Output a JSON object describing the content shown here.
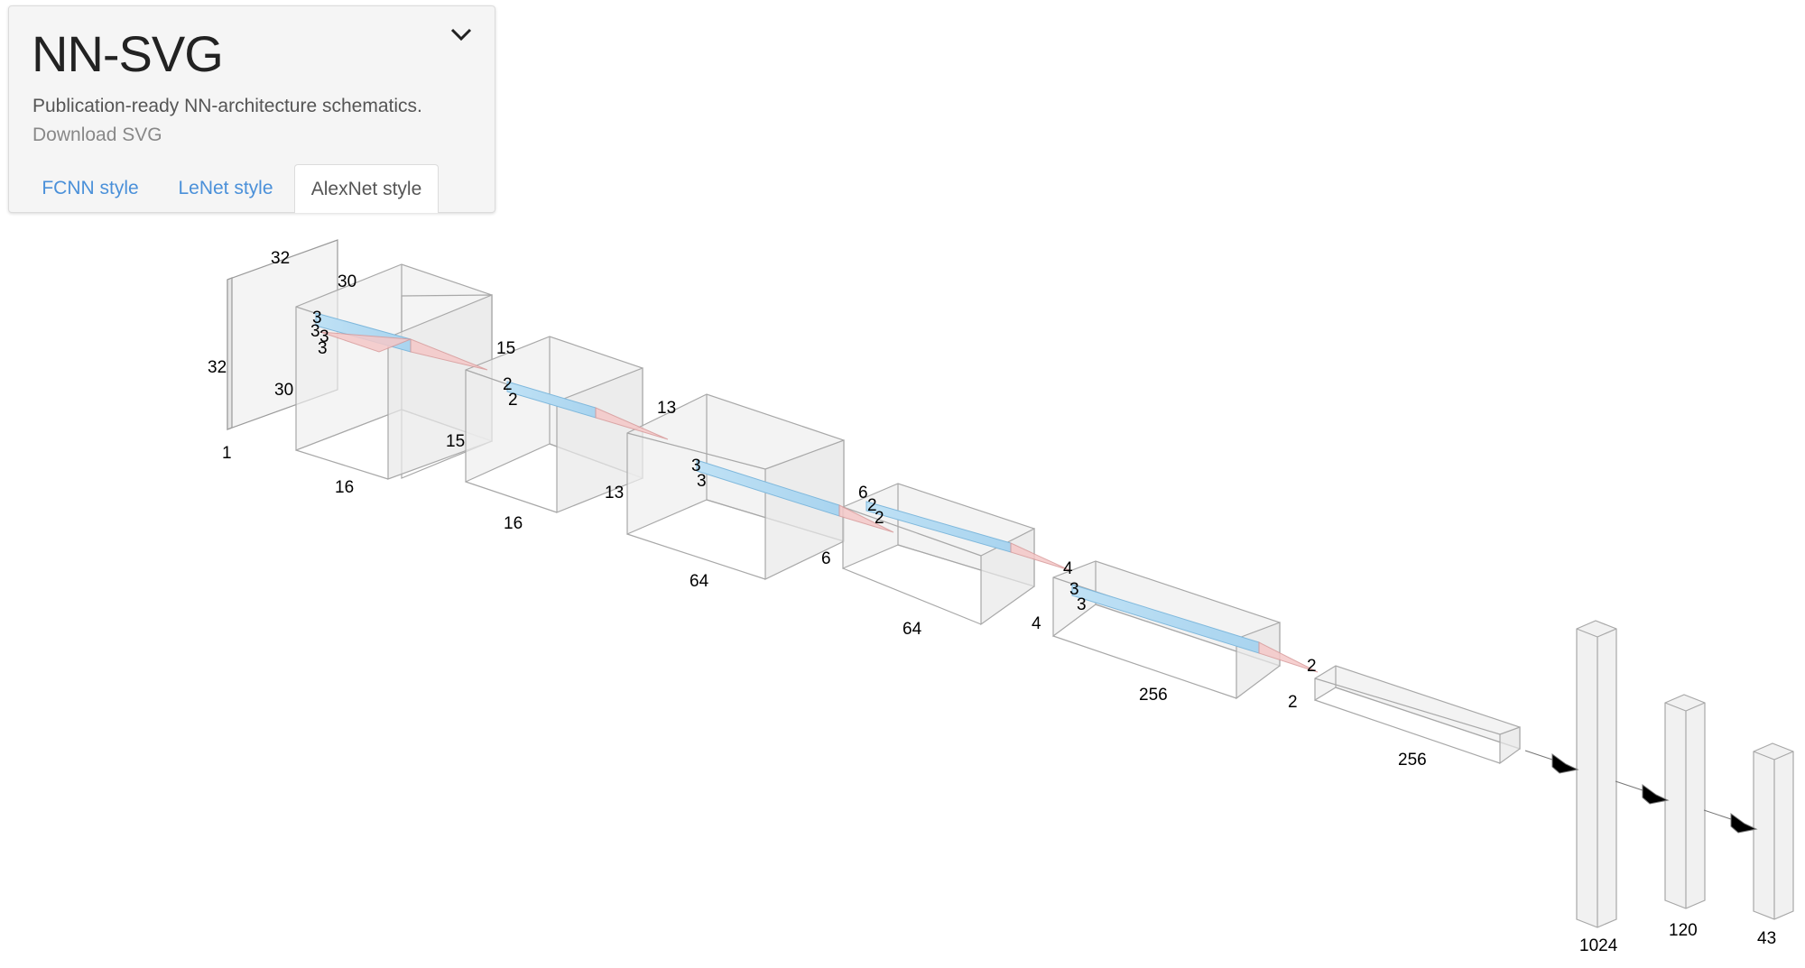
{
  "panel": {
    "title": "NN-SVG",
    "subtitle": "Publication-ready NN-architecture schematics.",
    "download_label": "Download SVG",
    "tabs": [
      "FCNN style",
      "LeNet style",
      "AlexNet style"
    ],
    "active_tab": "AlexNet style"
  },
  "architecture": {
    "style": "AlexNet",
    "layers": [
      {
        "height": "32",
        "width": "32",
        "depth": "1"
      },
      {
        "height": "30",
        "width": "30",
        "depth": "16"
      },
      {
        "height": "15",
        "width": "15",
        "depth": "16"
      },
      {
        "height": "13",
        "width": "13",
        "depth": "64"
      },
      {
        "height": "6",
        "width": "6",
        "depth": "64"
      },
      {
        "height": "4",
        "width": "4",
        "depth": "256"
      },
      {
        "height": "2",
        "width": "2",
        "depth": "256"
      }
    ],
    "kernels": [
      {
        "a": "3",
        "b": "3"
      },
      {
        "a": "3",
        "b": "3"
      },
      {
        "a": "2",
        "b": "2"
      },
      {
        "a": "3",
        "b": "3"
      },
      {
        "a": "2",
        "b": "2"
      },
      {
        "a": "3",
        "b": "3"
      },
      {
        "a": "2",
        "b": ""
      }
    ],
    "dense": [
      "1024",
      "120",
      "43"
    ]
  },
  "colors": {
    "kernel_fill": "#bfe1f5",
    "kernel_stroke": "#7fb8dc",
    "pyramid_fill": "#f5c8c8",
    "pyramid_stroke": "#d89a9a",
    "box_fill": "#f2f2f2",
    "box_stroke": "#a8a8a8",
    "link_tab": "#4a90d9"
  }
}
